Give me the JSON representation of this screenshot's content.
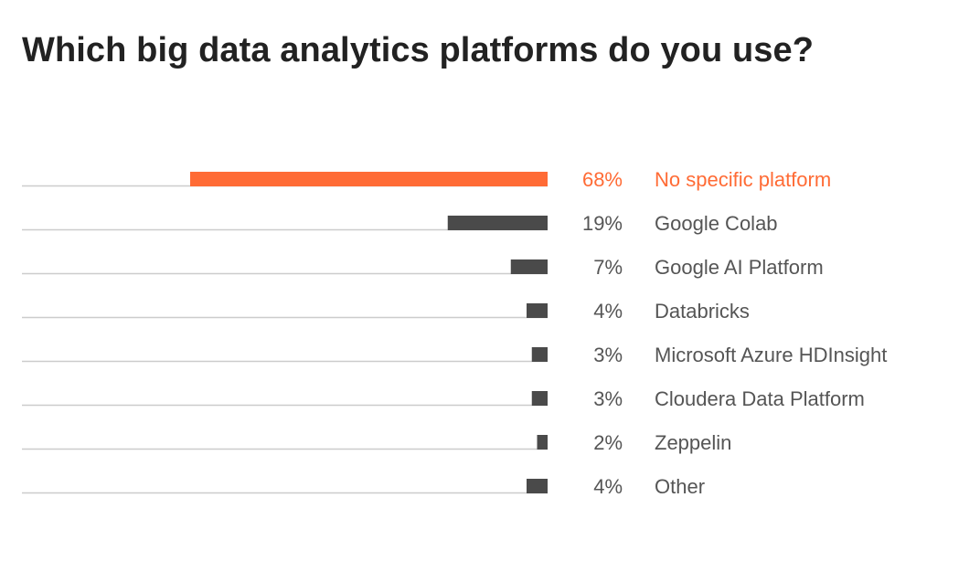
{
  "chart_data": {
    "type": "bar",
    "orientation": "horizontal",
    "title": "Which big data analytics platforms do you use?",
    "xlabel": "",
    "ylabel": "",
    "xlim": [
      0,
      100
    ],
    "grid": false,
    "legend": "none",
    "value_suffix": "%",
    "highlight_color": "#ff6b35",
    "bar_color": "#4a4a4a",
    "baseline_color": "#cccccc",
    "label_color": "#555555",
    "categories": [
      "No specific platform",
      "Google Colab",
      "Google AI Platform",
      "Databricks",
      "Microsoft Azure HDInsight",
      "Cloudera Data Platform",
      "Zeppelin",
      "Other"
    ],
    "values": [
      68,
      19,
      7,
      4,
      3,
      3,
      2,
      4
    ],
    "value_labels": [
      "68%",
      "19%",
      "7%",
      "4%",
      "3%",
      "3%",
      "2%",
      "4%"
    ],
    "highlight_index": 0
  }
}
